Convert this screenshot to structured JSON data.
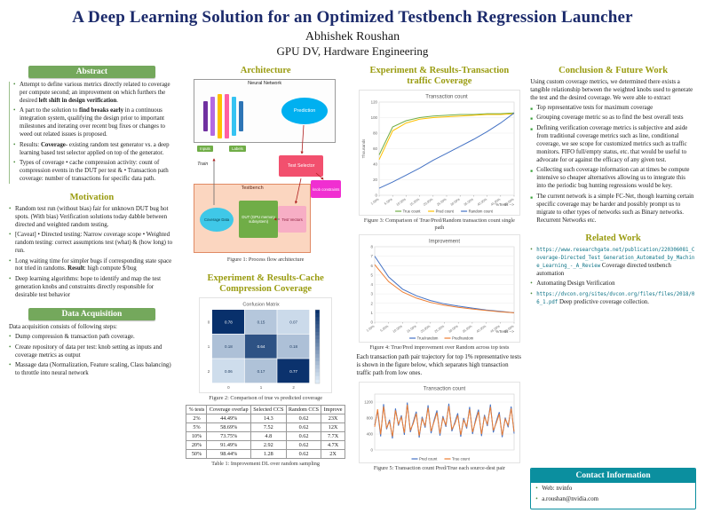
{
  "colors": {
    "green": "#74a85c",
    "olive": "#9a9c11",
    "teal": "#0b8f9f",
    "navy": "#1b2a6b"
  },
  "header": {
    "title": "A Deep Learning Solution for an Optimized Testbench Regression Launcher",
    "author": "Abhishek Roushan",
    "affiliation": "GPU DV, Hardware Engineering"
  },
  "columns": {
    "abstract": {
      "title": "Abstract",
      "bullets": [
        "Attempt to define various metrics directly related to coverage per compute second; an improvement on which furthers the desired **left shift in design verification**.",
        "A part to the solution to **find breaks early** in a continuous integration system, qualifying the design prior to important milestones and iterating over recent bug fixes or changes to weed out related issues is proposed.",
        "Results: **Coverage**- existing random test generator vs. a deep learning based test selector applied on top of the generator.",
        "Types of coverage • cache compression activity: count of compression events in the DUT per test & • Transaction path coverage: number of transactions for specific data path."
      ]
    },
    "motivation": {
      "title": "Motivation",
      "bullets": [
        "Random test run (without bias) fair for unknown DUT bug hot spots. (With bias) Verification solutions today dabble between directed and weighted random testing.",
        "[Caveat] • Directed testing: Narrow coverage scope • Weighted random testing: correct assumptions test (what) & (how long) to run.",
        "Long waiting time for simpler bugs if corresponding state space not tried in randoms. **Result**: high compute $/bug",
        "Deep learning algorithms: hope to identify and map the test generation knobs and constraints directly responsible for desirable test behavior"
      ]
    },
    "data_acquisition": {
      "title": "Data Acquisition",
      "intro": "Data acquisition consists of following steps:",
      "bullets": [
        "Dump compression & transaction path coverage.",
        "Create repository of data per test: knob setting as inputs and coverage metrics as output",
        "Massage data (Normalization, Feature scaling, Class balancing) to throttle into neural network"
      ]
    },
    "architecture": {
      "title": "Architecture",
      "caption": "Figure 1: Process flow architecture",
      "labels": {
        "neural_network": "Neural Network",
        "prediction": "Prediction",
        "inputs": "Inputs",
        "labels": "Labels",
        "train": "Train",
        "test_selector": "Test Selector",
        "knob_constraints": "knob constraints",
        "testbench": "Testbench",
        "coverage_data": "Coverage Data",
        "dut": "DUT (GPU memory subsystem)",
        "test_vectors": "Test Vectors"
      }
    },
    "cache": {
      "title": "Experiment & Results-Cache Compression Coverage",
      "fig_caption": "Figure 2: Comparison of true vs predicted coverage",
      "table": {
        "caption": "Table 1: Improvement DL over random sampling",
        "headers": [
          "% tests",
          "Coverage overlap",
          "Selected CCS",
          "Random CCS",
          "Improve"
        ],
        "rows": [
          [
            "2%",
            "44.49%",
            "14.3",
            "0.62",
            "23X"
          ],
          [
            "5%",
            "58.69%",
            "7.52",
            "0.62",
            "12X"
          ],
          [
            "10%",
            "73.75%",
            "4.8",
            "0.62",
            "7.7X"
          ],
          [
            "20%",
            "91.49%",
            "2.92",
            "0.62",
            "4.7X"
          ],
          [
            "50%",
            "98.44%",
            "1.28",
            "0.62",
            "2X"
          ]
        ]
      }
    },
    "transaction": {
      "title": "Experiment & Results-Transaction traffic Coverage",
      "fig3_caption": "Figure 3: Comparison of True/Pred/Random transaction count single path",
      "fig4_caption": "Figure 4: True/Pred improvement over Random across top tests",
      "body": "Each transaction path pair trajectory for top 1% representative tests is shown in the figure below, which separates high transaction traffic path from low ones.",
      "fig5_caption": "Figure 5: Transaction count Pred/True each source-dest pair"
    },
    "conclusion": {
      "title": "Conclusion & Future Work",
      "intro": "Using custom coverage metrics, we determined there exists a tangible relationship between the weighted knobs used to generate the test and the desired coverage. We were able to extract",
      "bullets": [
        "Top representative tests for maximum coverage",
        "Grouping coverage metric so as to find the best overall tests",
        "Defining verification coverage metrics is subjective and aside from traditional coverage metrics such as line, conditional coverage, we see scope for customized metrics such as traffic monitors. FIFO full/empty status, etc. that would be useful to advocate for or against the efficacy of any given test.",
        "Collecting such coverage information can at times be compute intensive so cheaper alternatives allowing us to integrate this into the periodic bug hunting regressions would be key.",
        "The current network is a simple FC-Net, though learning certain specific coverage may be harder and possibly prompt us to migrate to other types of networks such as Binary networks. Recurrent Networks etc."
      ]
    },
    "related": {
      "title": "Related Work",
      "items": [
        {
          "url": "https://www.researchgate.net/publication/220306081_Coverage-Directed_Test_Generation_Automated_by_Machine_Learning_-_A_Review",
          "text": "Coverage directed testbench automation"
        },
        {
          "url": "",
          "text": "Automating Design Verification"
        },
        {
          "url": "https://dvcon.org/sites/dvcon.org/files/files/2018/06_1.pdf",
          "text": "Deep predictive coverage collection."
        }
      ]
    },
    "contact": {
      "title": "Contact Information",
      "items": [
        "Web: nvinfo",
        "a.roushan@nvidia.com"
      ]
    }
  },
  "chart_data": [
    {
      "id": "fig2",
      "type": "heatmap",
      "title": "Confusion Matrix",
      "rows": [
        "0",
        "1",
        "2"
      ],
      "cols": [
        "0",
        "1",
        "2"
      ],
      "values": [
        [
          0.78,
          0.15,
          0.07
        ],
        [
          0.18,
          0.64,
          0.18
        ],
        [
          0.06,
          0.17,
          0.77
        ]
      ]
    },
    {
      "id": "fig3",
      "type": "line",
      "title": "Transaction count",
      "xlabel": "%Tests -->",
      "ylabel": "Thousands",
      "ylim": [
        0,
        120
      ],
      "y_ticks": [
        0,
        20,
        40,
        60,
        80,
        100,
        120
      ],
      "x_ticks": [
        "1.00%",
        "5.00%",
        "10.00%",
        "15.00%",
        "20.00%",
        "25.00%",
        "30.00%",
        "35.00%",
        "40.00%",
        "45.00%",
        "50.00%"
      ],
      "series": [
        {
          "name": "True count",
          "color": "#70ad47",
          "values": [
            52,
            88,
            96,
            100,
            102,
            103,
            104,
            104,
            105,
            105,
            106
          ]
        },
        {
          "name": "Pred count",
          "color": "#ffc000",
          "values": [
            46,
            83,
            93,
            98,
            100,
            101,
            102,
            103,
            104,
            104,
            105
          ]
        },
        {
          "name": "Random count",
          "color": "#4472c4",
          "values": [
            9,
            17,
            26,
            35,
            45,
            54,
            63,
            72,
            82,
            93,
            106
          ]
        }
      ]
    },
    {
      "id": "fig4",
      "type": "line",
      "title": "Improvement",
      "xlabel": "%Tests -->",
      "ylim": [
        0,
        8
      ],
      "y_ticks": [
        0,
        1,
        2,
        3,
        4,
        5,
        6,
        7,
        8
      ],
      "x_ticks": [
        "1.00%",
        "5.00%",
        "10.00%",
        "15.00%",
        "20.00%",
        "25.00%",
        "30.00%",
        "35.00%",
        "40.00%",
        "45.00%",
        "50.00%"
      ],
      "series": [
        {
          "name": "True/random",
          "color": "#4472c4",
          "values": [
            7.0,
            4.8,
            3.5,
            2.8,
            2.3,
            1.95,
            1.7,
            1.5,
            1.3,
            1.15,
            1.0
          ]
        },
        {
          "name": "Pred/random",
          "color": "#ed7d31",
          "values": [
            6.1,
            4.3,
            3.2,
            2.55,
            2.1,
            1.8,
            1.58,
            1.4,
            1.25,
            1.1,
            1.0
          ]
        }
      ]
    },
    {
      "id": "fig5",
      "type": "line",
      "title": "Transaction count",
      "ylim": [
        0,
        1400
      ],
      "y_ticks": [
        0,
        400,
        800,
        1200
      ],
      "series": [
        {
          "name": "Pred count",
          "color": "#4472c4",
          "values": [
            620,
            980,
            340,
            1150,
            520,
            760,
            290,
            1040,
            610,
            870,
            380,
            1190,
            450,
            700,
            960,
            310,
            830,
            560,
            1120,
            420,
            740,
            990,
            360,
            850,
            580,
            1160,
            470,
            690,
            920,
            330,
            800,
            540,
            1080,
            400,
            760,
            1010,
            350,
            880,
            600,
            1140,
            440,
            720,
            950,
            320,
            810,
            570,
            1090,
            410
          ]
        },
        {
          "name": "True count",
          "color": "#ed7d31",
          "values": [
            580,
            1020,
            390,
            1090,
            560,
            710,
            340,
            990,
            650,
            820,
            430,
            1130,
            500,
            660,
            910,
            360,
            780,
            610,
            1060,
            470,
            700,
            940,
            410,
            800,
            630,
            1100,
            520,
            650,
            870,
            380,
            750,
            590,
            1020,
            450,
            710,
            960,
            400,
            830,
            650,
            1080,
            490,
            680,
            900,
            370,
            770,
            620,
            1040,
            460
          ]
        }
      ]
    }
  ]
}
